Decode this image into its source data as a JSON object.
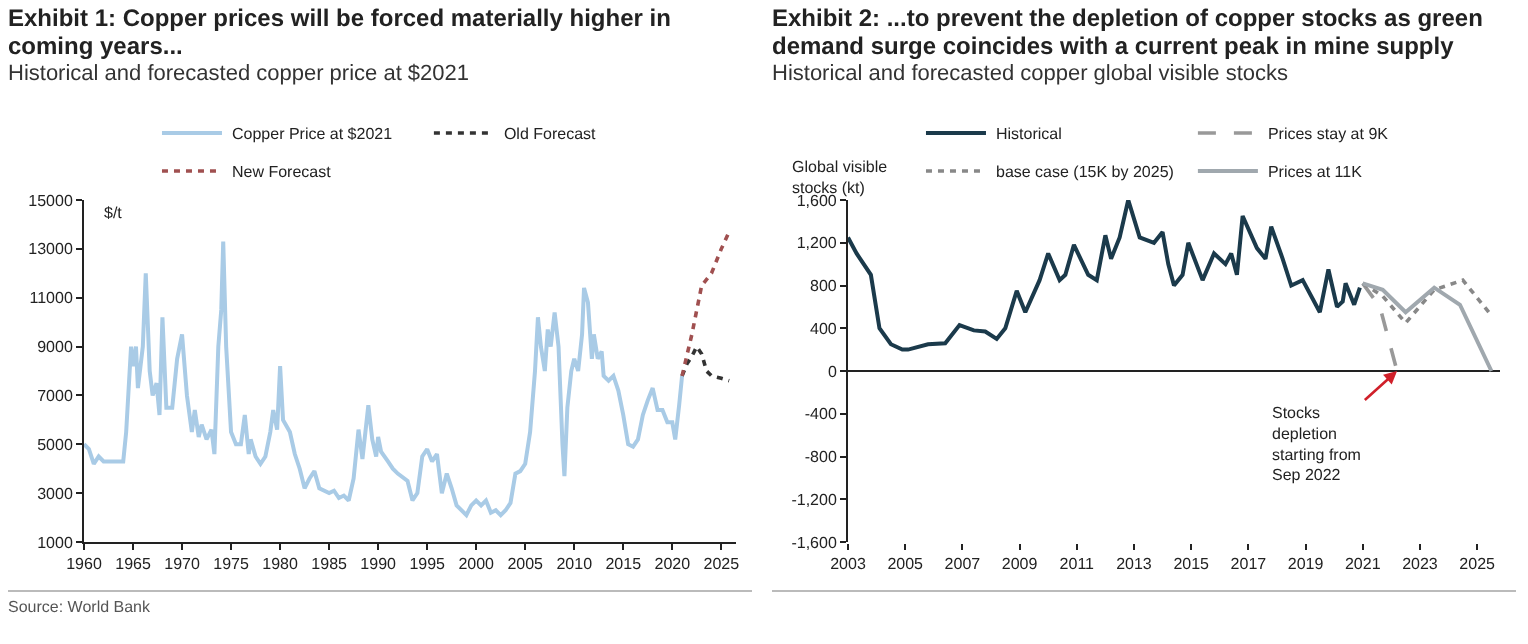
{
  "chart_data": [
    {
      "type": "line",
      "title": "Exhibit 1: Copper prices will be forced materially higher in coming years...",
      "subtitle": "Historical and forecasted copper price at $2021",
      "ylabel": "$/t",
      "xlim": [
        1960,
        2026.5
      ],
      "xticks": [
        1960,
        1965,
        1970,
        1975,
        1980,
        1985,
        1990,
        1995,
        2000,
        2005,
        2010,
        2015,
        2020,
        2025
      ],
      "ylim": [
        1000,
        15000
      ],
      "yticks": [
        1000,
        3000,
        5000,
        7000,
        9000,
        11000,
        13000,
        15000
      ],
      "legend": "top",
      "annotations": [
        "Source: World Bank"
      ],
      "series": [
        {
          "name": "Copper Price at $2021",
          "color": "#a9cbe6",
          "line_style": "solid",
          "x": [
            1960,
            1960.5,
            1961,
            1961.5,
            1962,
            1963,
            1964,
            1964.3,
            1964.8,
            1965,
            1965.3,
            1965.5,
            1966,
            1966.3,
            1966.7,
            1967,
            1967.4,
            1967.7,
            1968,
            1968.4,
            1969,
            1969.5,
            1970,
            1970.5,
            1971,
            1971.3,
            1971.7,
            1972,
            1972.5,
            1973,
            1973.3,
            1973.7,
            1974,
            1974.2,
            1974.5,
            1975,
            1975.5,
            1976,
            1976.4,
            1976.8,
            1977,
            1977.5,
            1978,
            1978.5,
            1979,
            1979.3,
            1979.7,
            1980,
            1980.3,
            1981,
            1981.5,
            1982,
            1982.5,
            1983,
            1983.5,
            1984,
            1985,
            1985.5,
            1986,
            1986.5,
            1987,
            1987.5,
            1988,
            1988.4,
            1989,
            1989.4,
            1989.8,
            1990,
            1990.3,
            1991,
            1991.5,
            1992,
            1993,
            1993.5,
            1994,
            1994.5,
            1995,
            1995.5,
            1996,
            1996.5,
            1997,
            1997.5,
            1998,
            1999,
            1999.5,
            2000,
            2000.5,
            2001,
            2001.5,
            2002,
            2002.5,
            2003,
            2003.5,
            2004,
            2004.5,
            2005,
            2005.5,
            2006,
            2006.3,
            2006.6,
            2007,
            2007.3,
            2007.6,
            2008,
            2008.4,
            2008.8,
            2009,
            2009.3,
            2009.7,
            2010,
            2010.4,
            2010.8,
            2011,
            2011.4,
            2011.8,
            2012,
            2012.4,
            2012.8,
            2013,
            2013.5,
            2014,
            2014.5,
            2015,
            2015.5,
            2016,
            2016.5,
            2017,
            2017.5,
            2018,
            2018.5,
            2019,
            2019.5,
            2020,
            2020.3,
            2020.7,
            2021
          ],
          "values": [
            5000,
            4800,
            4200,
            4500,
            4300,
            4300,
            4300,
            5500,
            9000,
            8200,
            9000,
            7300,
            9000,
            12000,
            8000,
            7000,
            7500,
            6200,
            10200,
            6500,
            6500,
            8500,
            9500,
            7000,
            5500,
            6400,
            5300,
            5800,
            5200,
            5600,
            4600,
            9000,
            10500,
            13300,
            9000,
            5500,
            5000,
            5000,
            6200,
            4600,
            5200,
            4500,
            4200,
            4500,
            5500,
            6400,
            5600,
            8200,
            6000,
            5500,
            4600,
            4000,
            3200,
            3600,
            3900,
            3200,
            3000,
            3100,
            2800,
            2900,
            2700,
            3600,
            5600,
            4400,
            6600,
            5200,
            4500,
            5300,
            4700,
            4300,
            4000,
            3800,
            3500,
            2700,
            3000,
            4500,
            4800,
            4300,
            4600,
            3000,
            3800,
            3200,
            2500,
            2100,
            2500,
            2700,
            2500,
            2700,
            2200,
            2300,
            2100,
            2300,
            2600,
            3800,
            3900,
            4200,
            5500,
            8000,
            10200,
            9000,
            8000,
            9700,
            9000,
            10400,
            9000,
            5000,
            3700,
            6500,
            8000,
            8500,
            8000,
            9500,
            11400,
            10800,
            8500,
            9500,
            8500,
            8800,
            7800,
            7600,
            7800,
            7200,
            6200,
            5000,
            4900,
            5200,
            6200,
            6800,
            7300,
            6400,
            6400,
            5900,
            5900,
            5200,
            6600,
            7800
          ]
        },
        {
          "name": "Old Forecast",
          "color": "#333333",
          "line_style": "dotted",
          "x": [
            2021,
            2021.5,
            2022,
            2022.5,
            2023,
            2023.5,
            2024,
            2025,
            2025.8
          ],
          "values": [
            7800,
            8300,
            8600,
            9000,
            8700,
            8000,
            7800,
            7700,
            7600
          ]
        },
        {
          "name": "New Forecast",
          "color": "#a05050",
          "line_style": "dotted",
          "x": [
            2021,
            2022,
            2023,
            2024,
            2025,
            2025.8
          ],
          "values": [
            7800,
            9500,
            11500,
            12000,
            13000,
            13700
          ]
        }
      ]
    },
    {
      "type": "line",
      "title": "Exhibit 2: ...to prevent the depletion of copper stocks as green demand surge coincides with a current peak in mine supply",
      "subtitle": "Historical and forecasted copper global visible stocks",
      "ylabel": "Global visible\nstocks (kt)",
      "xlim": [
        2003,
        2025.8
      ],
      "xticks": [
        2003,
        2005,
        2007,
        2009,
        2011,
        2013,
        2015,
        2017,
        2019,
        2021,
        2023,
        2025
      ],
      "ylim": [
        -1600,
        1600
      ],
      "yticks": [
        {
          "value": -1600,
          "label": "-1,600"
        },
        {
          "value": -1200,
          "label": "-1,200"
        },
        -800,
        -400,
        0,
        400,
        800,
        {
          "value": 1200,
          "label": "1,200"
        },
        {
          "value": 1600,
          "label": "1,600"
        }
      ],
      "legend": "top",
      "annotations": [
        {
          "text": "Stocks\ndepletion\nstarting from\nSep 2022",
          "x": 2022.2,
          "y": 0
        }
      ],
      "series": [
        {
          "name": "Historical",
          "color": "#1b3a4b",
          "line_style": "solid",
          "x": [
            2003,
            2003.3,
            2003.8,
            2004.1,
            2004.5,
            2004.9,
            2005.1,
            2005.8,
            2006.4,
            2006.9,
            2007.4,
            2007.8,
            2008.2,
            2008.5,
            2008.9,
            2009.2,
            2009.7,
            2010,
            2010.4,
            2010.6,
            2010.9,
            2011.4,
            2011.7,
            2012,
            2012.2,
            2012.5,
            2012.8,
            2013.2,
            2013.7,
            2014,
            2014.2,
            2014.4,
            2014.7,
            2014.9,
            2015.4,
            2015.8,
            2016.2,
            2016.4,
            2016.6,
            2016.8,
            2017.3,
            2017.6,
            2017.8,
            2018.2,
            2018.5,
            2018.9,
            2019.5,
            2019.8,
            2020.1,
            2020.3,
            2020.4,
            2020.7,
            2020.9
          ],
          "values": [
            1250,
            1100,
            900,
            400,
            250,
            200,
            200,
            250,
            260,
            430,
            380,
            370,
            300,
            400,
            750,
            550,
            850,
            1100,
            850,
            900,
            1180,
            900,
            850,
            1270,
            1050,
            1250,
            1600,
            1250,
            1200,
            1300,
            1000,
            800,
            900,
            1200,
            850,
            1100,
            1000,
            1100,
            900,
            1450,
            1150,
            1050,
            1350,
            1050,
            800,
            850,
            550,
            950,
            600,
            650,
            820,
            620,
            780
          ]
        },
        {
          "name": "Prices stay at 9K",
          "color": "#999999",
          "line_style": "dashed",
          "x": [
            2021,
            2021.6,
            2022.2
          ],
          "values": [
            820,
            600,
            0
          ]
        },
        {
          "name": "base case (15K by 2025)",
          "color": "#888888",
          "line_style": "dotted",
          "x": [
            2021,
            2021.7,
            2022.5,
            2023.5,
            2024.5,
            2025.5
          ],
          "values": [
            820,
            700,
            450,
            760,
            850,
            520
          ]
        },
        {
          "name": "Prices at 11K",
          "color": "#a0a8ae",
          "line_style": "solid",
          "x": [
            2021,
            2021.7,
            2022.5,
            2023.5,
            2024.4,
            2025.5
          ],
          "values": [
            820,
            760,
            550,
            780,
            620,
            0
          ]
        }
      ]
    }
  ]
}
